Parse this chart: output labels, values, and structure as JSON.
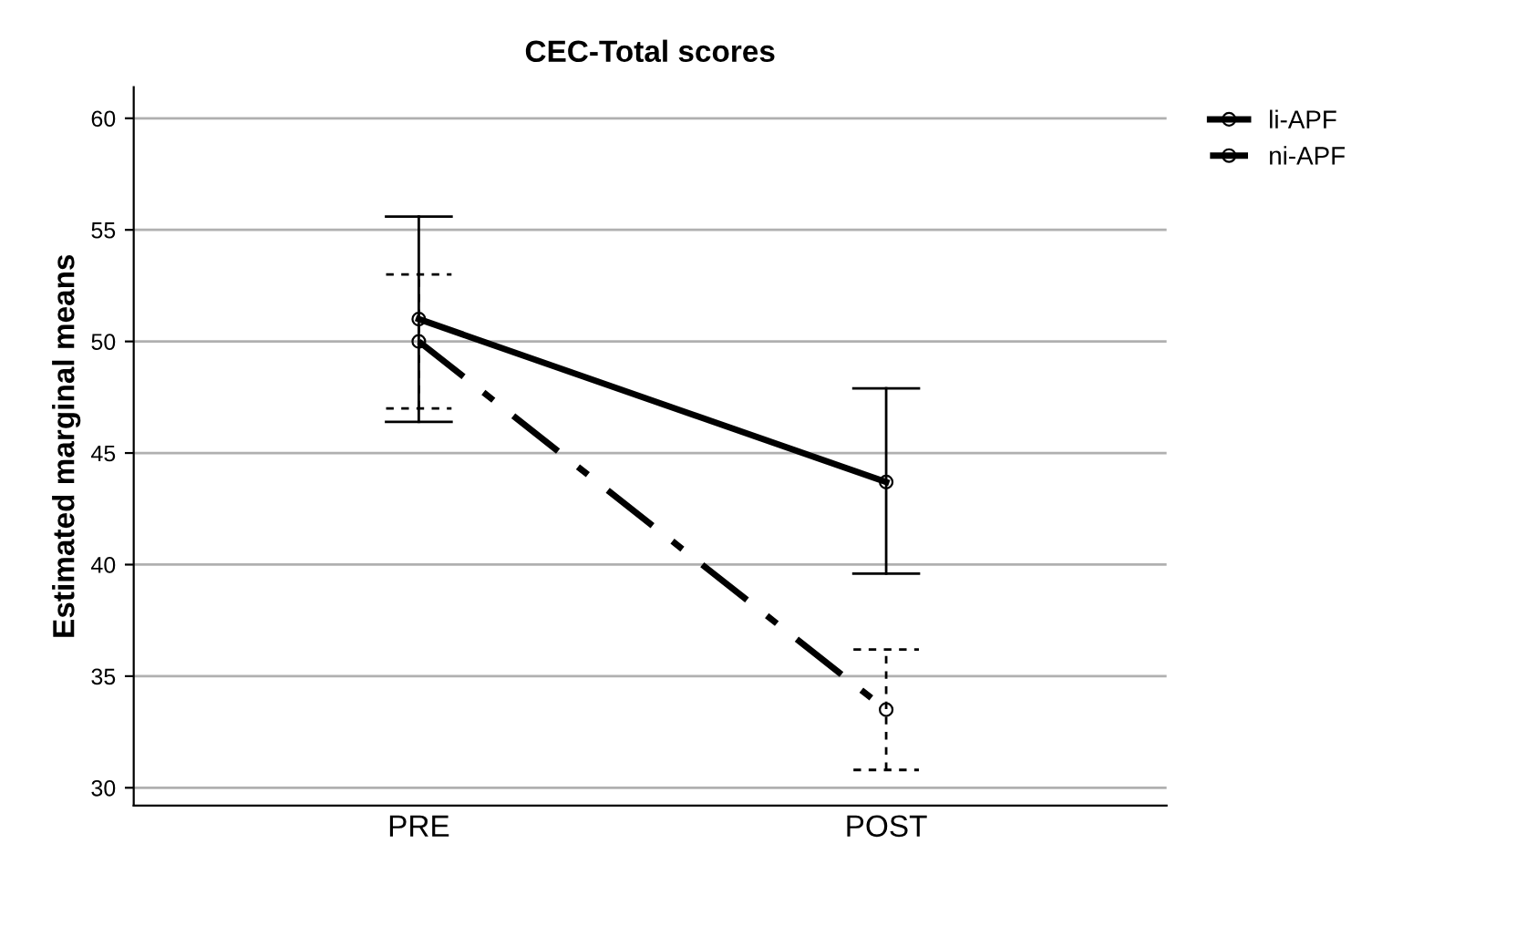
{
  "chart_data": {
    "type": "line",
    "title": "CEC-Total scores",
    "ylabel": "Estimated marginal means",
    "categories": [
      "PRE",
      "POST"
    ],
    "series": [
      {
        "name": "li-APF",
        "color": "#000000",
        "values": [
          51.0,
          43.7
        ],
        "errors": [
          [
            46.4,
            55.6
          ],
          [
            39.6,
            47.9
          ]
        ],
        "line_style": "solid"
      },
      {
        "name": "ni-APF",
        "color": "#000000",
        "values": [
          50.0,
          33.5
        ],
        "errors": [
          [
            47.0,
            53.0
          ],
          [
            30.8,
            36.2
          ]
        ],
        "line_style": "dashed"
      }
    ],
    "ylim": [
      29.2,
      61.4
    ],
    "yticks": [
      30,
      35,
      40,
      45,
      50,
      55,
      60
    ],
    "grid": "y",
    "legend": "top right",
    "marker": "circle"
  }
}
